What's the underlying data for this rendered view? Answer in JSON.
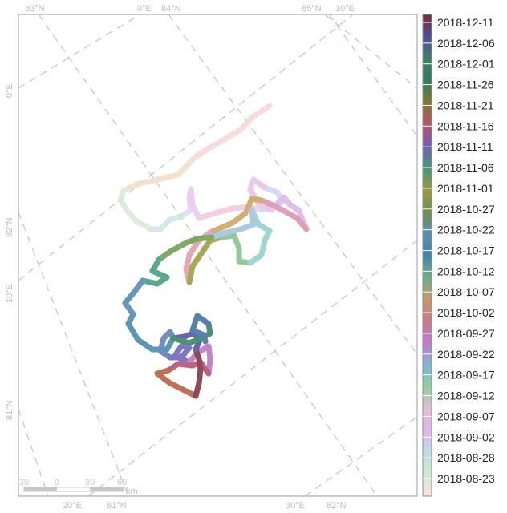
{
  "map": {
    "top_labels": [
      "83°N",
      "0°E",
      "84°N",
      "85°N",
      "10°E"
    ],
    "bottom_labels": [
      "20°E",
      "81°N",
      "30°E",
      "82°N"
    ],
    "left_labels": [
      "0°E",
      "82°N",
      "10°E",
      "81°N"
    ],
    "scale_bar": {
      "ticks": [
        "30",
        "0",
        "30",
        "60"
      ],
      "unit": "km"
    },
    "legend": {
      "dates": [
        "2018-12-11",
        "2018-12-06",
        "2018-12-01",
        "2018-11-26",
        "2018-11-21",
        "2018-11-16",
        "2018-11-11",
        "2018-11-06",
        "2018-11-01",
        "2018-10-27",
        "2018-10-22",
        "2018-10-17",
        "2018-10-12",
        "2018-10-07",
        "2018-10-02",
        "2018-09-27",
        "2018-09-22",
        "2018-09-17",
        "2018-09-12",
        "2018-09-07",
        "2018-09-02",
        "2018-08-28",
        "2018-08-23"
      ],
      "colors": [
        "#7b2c3a",
        "#4d4c9c",
        "#3f7f6a",
        "#2f7d5c",
        "#7d7a2e",
        "#b5556a",
        "#7a5bb5",
        "#3f9a7a",
        "#9a9a3c",
        "#6f8f4c",
        "#5b8fb2",
        "#3f86a8",
        "#6ab08a",
        "#c89a6a",
        "#c97a8a",
        "#c07ad0",
        "#7fb6cf",
        "#92cfa0",
        "#e6bcd6",
        "#e0b6ec",
        "#b9e0e4",
        "#cfe8d2",
        "#fbe2e4"
      ]
    },
    "track_colors": [
      "#f6d6d9",
      "#f2dcc8",
      "#d6ead8",
      "#cfe3e8",
      "#e6c8f0",
      "#f0c8e0",
      "#c8d8f4",
      "#e8c0e4",
      "#d8b4e8",
      "#d890b0",
      "#c9a060",
      "#e09aa8",
      "#9a9a3c",
      "#7fbf8a",
      "#90d0c8",
      "#9ec0d8",
      "#6a9a4c",
      "#3f9a7a",
      "#4a86b0",
      "#3f86a8",
      "#5a78b0",
      "#6a60b8",
      "#b870c0",
      "#b04a6c",
      "#b05a3a",
      "#7b2c3a",
      "#4d4c9c",
      "#2f7d5c",
      "#3a6aa0"
    ]
  }
}
